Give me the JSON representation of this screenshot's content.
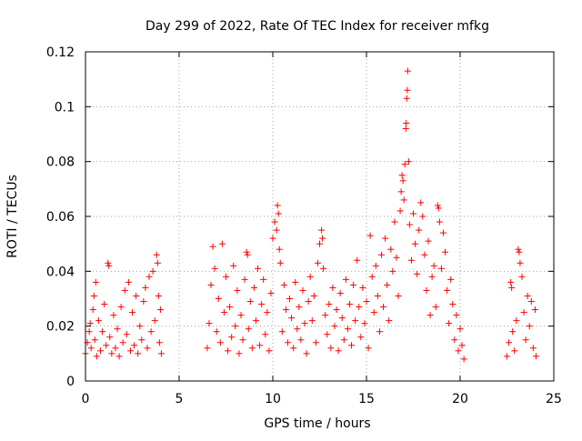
{
  "chart_data": {
    "type": "scatter",
    "title": "Day 299 of 2022, Rate Of TEC Index for receiver mfkg",
    "xlabel": "GPS time / hours",
    "ylabel": "ROTI / TECUs",
    "xlim": [
      0,
      25
    ],
    "ylim": [
      0,
      0.12
    ],
    "x_ticks": [
      0,
      5,
      10,
      15,
      20,
      25
    ],
    "x_tick_labels": [
      "0",
      "5",
      "10",
      "15",
      "20",
      "25"
    ],
    "y_ticks": [
      0,
      0.02,
      0.04,
      0.06,
      0.08,
      0.1,
      0.12
    ],
    "y_tick_labels": [
      "0",
      "0.02",
      "0.04",
      "0.06",
      "0.08",
      "0.1",
      "0.12"
    ],
    "grid": true,
    "marker": "+",
    "color": "#ff0000",
    "series": [
      {
        "values": [
          [
            0.0,
            0.01
          ],
          [
            0.1,
            0.014
          ],
          [
            0.2,
            0.018
          ],
          [
            0.25,
            0.021
          ],
          [
            0.3,
            0.012
          ],
          [
            0.4,
            0.026
          ],
          [
            0.45,
            0.031
          ],
          [
            0.5,
            0.015
          ],
          [
            0.55,
            0.036
          ],
          [
            0.6,
            0.009
          ],
          [
            0.7,
            0.022
          ],
          [
            0.8,
            0.011
          ],
          [
            0.9,
            0.018
          ],
          [
            1.0,
            0.028
          ],
          [
            1.1,
            0.013
          ],
          [
            1.2,
            0.043
          ],
          [
            1.25,
            0.042
          ],
          [
            1.3,
            0.016
          ],
          [
            1.4,
            0.01
          ],
          [
            1.5,
            0.024
          ],
          [
            1.6,
            0.012
          ],
          [
            1.7,
            0.019
          ],
          [
            1.8,
            0.009
          ],
          [
            1.9,
            0.027
          ],
          [
            2.0,
            0.014
          ],
          [
            2.1,
            0.033
          ],
          [
            2.2,
            0.017
          ],
          [
            2.3,
            0.036
          ],
          [
            2.4,
            0.011
          ],
          [
            2.5,
            0.025
          ],
          [
            2.6,
            0.013
          ],
          [
            2.7,
            0.031
          ],
          [
            2.8,
            0.01
          ],
          [
            2.9,
            0.02
          ],
          [
            3.0,
            0.015
          ],
          [
            3.1,
            0.029
          ],
          [
            3.2,
            0.034
          ],
          [
            3.3,
            0.012
          ],
          [
            3.4,
            0.038
          ],
          [
            3.5,
            0.018
          ],
          [
            3.6,
            0.04
          ],
          [
            3.7,
            0.022
          ],
          [
            3.8,
            0.046
          ],
          [
            3.85,
            0.043
          ],
          [
            3.9,
            0.031
          ],
          [
            3.95,
            0.014
          ],
          [
            4.0,
            0.026
          ],
          [
            4.05,
            0.01
          ],
          [
            6.5,
            0.012
          ],
          [
            6.6,
            0.021
          ],
          [
            6.7,
            0.035
          ],
          [
            6.8,
            0.049
          ],
          [
            6.9,
            0.041
          ],
          [
            7.0,
            0.018
          ],
          [
            7.1,
            0.03
          ],
          [
            7.2,
            0.014
          ],
          [
            7.3,
            0.05
          ],
          [
            7.4,
            0.025
          ],
          [
            7.5,
            0.038
          ],
          [
            7.6,
            0.011
          ],
          [
            7.7,
            0.027
          ],
          [
            7.8,
            0.016
          ],
          [
            7.9,
            0.042
          ],
          [
            8.0,
            0.02
          ],
          [
            8.1,
            0.033
          ],
          [
            8.2,
            0.01
          ],
          [
            8.3,
            0.024
          ],
          [
            8.4,
            0.015
          ],
          [
            8.5,
            0.037
          ],
          [
            8.6,
            0.047
          ],
          [
            8.65,
            0.046
          ],
          [
            8.7,
            0.019
          ],
          [
            8.8,
            0.029
          ],
          [
            8.9,
            0.012
          ],
          [
            9.0,
            0.034
          ],
          [
            9.1,
            0.022
          ],
          [
            9.2,
            0.041
          ],
          [
            9.3,
            0.013
          ],
          [
            9.4,
            0.028
          ],
          [
            9.5,
            0.037
          ],
          [
            9.6,
            0.017
          ],
          [
            9.7,
            0.025
          ],
          [
            9.8,
            0.011
          ],
          [
            9.9,
            0.032
          ],
          [
            10.0,
            0.052
          ],
          [
            10.1,
            0.058
          ],
          [
            10.2,
            0.055
          ],
          [
            10.25,
            0.064
          ],
          [
            10.3,
            0.061
          ],
          [
            10.35,
            0.048
          ],
          [
            10.4,
            0.043
          ],
          [
            10.5,
            0.018
          ],
          [
            10.6,
            0.035
          ],
          [
            10.7,
            0.026
          ],
          [
            10.8,
            0.014
          ],
          [
            10.9,
            0.03
          ],
          [
            11.0,
            0.023
          ],
          [
            11.1,
            0.012
          ],
          [
            11.2,
            0.036
          ],
          [
            11.3,
            0.019
          ],
          [
            11.4,
            0.027
          ],
          [
            11.5,
            0.015
          ],
          [
            11.6,
            0.033
          ],
          [
            11.7,
            0.021
          ],
          [
            11.8,
            0.01
          ],
          [
            11.9,
            0.029
          ],
          [
            12.0,
            0.038
          ],
          [
            12.1,
            0.022
          ],
          [
            12.2,
            0.031
          ],
          [
            12.3,
            0.014
          ],
          [
            12.4,
            0.043
          ],
          [
            12.5,
            0.05
          ],
          [
            12.6,
            0.055
          ],
          [
            12.65,
            0.052
          ],
          [
            12.7,
            0.041
          ],
          [
            12.8,
            0.024
          ],
          [
            12.9,
            0.017
          ],
          [
            13.0,
            0.028
          ],
          [
            13.1,
            0.012
          ],
          [
            13.2,
            0.034
          ],
          [
            13.3,
            0.02
          ],
          [
            13.4,
            0.026
          ],
          [
            13.5,
            0.011
          ],
          [
            13.6,
            0.032
          ],
          [
            13.7,
            0.023
          ],
          [
            13.8,
            0.015
          ],
          [
            13.9,
            0.037
          ],
          [
            14.0,
            0.019
          ],
          [
            14.1,
            0.028
          ],
          [
            14.2,
            0.013
          ],
          [
            14.3,
            0.035
          ],
          [
            14.4,
            0.022
          ],
          [
            14.5,
            0.044
          ],
          [
            14.6,
            0.027
          ],
          [
            14.7,
            0.016
          ],
          [
            14.8,
            0.034
          ],
          [
            14.9,
            0.021
          ],
          [
            15.0,
            0.029
          ],
          [
            15.1,
            0.012
          ],
          [
            15.2,
            0.053
          ],
          [
            15.3,
            0.038
          ],
          [
            15.4,
            0.025
          ],
          [
            15.5,
            0.042
          ],
          [
            15.6,
            0.031
          ],
          [
            15.7,
            0.018
          ],
          [
            15.8,
            0.046
          ],
          [
            15.9,
            0.027
          ],
          [
            16.0,
            0.052
          ],
          [
            16.1,
            0.035
          ],
          [
            16.2,
            0.022
          ],
          [
            16.3,
            0.048
          ],
          [
            16.4,
            0.04
          ],
          [
            16.5,
            0.058
          ],
          [
            16.6,
            0.045
          ],
          [
            16.7,
            0.031
          ],
          [
            16.8,
            0.062
          ],
          [
            16.85,
            0.069
          ],
          [
            16.9,
            0.075
          ],
          [
            16.95,
            0.073
          ],
          [
            17.0,
            0.066
          ],
          [
            17.05,
            0.079
          ],
          [
            17.1,
            0.092
          ],
          [
            17.12,
            0.094
          ],
          [
            17.15,
            0.103
          ],
          [
            17.18,
            0.106
          ],
          [
            17.2,
            0.113
          ],
          [
            17.25,
            0.08
          ],
          [
            17.3,
            0.057
          ],
          [
            17.4,
            0.044
          ],
          [
            17.5,
            0.061
          ],
          [
            17.6,
            0.05
          ],
          [
            17.7,
            0.039
          ],
          [
            17.8,
            0.055
          ],
          [
            17.9,
            0.065
          ],
          [
            18.0,
            0.06
          ],
          [
            18.1,
            0.046
          ],
          [
            18.2,
            0.033
          ],
          [
            18.3,
            0.051
          ],
          [
            18.4,
            0.024
          ],
          [
            18.5,
            0.038
          ],
          [
            18.6,
            0.042
          ],
          [
            18.7,
            0.027
          ],
          [
            18.8,
            0.064
          ],
          [
            18.85,
            0.063
          ],
          [
            18.9,
            0.058
          ],
          [
            19.0,
            0.041
          ],
          [
            19.1,
            0.054
          ],
          [
            19.2,
            0.047
          ],
          [
            19.3,
            0.033
          ],
          [
            19.4,
            0.021
          ],
          [
            19.5,
            0.037
          ],
          [
            19.6,
            0.028
          ],
          [
            19.7,
            0.015
          ],
          [
            19.8,
            0.024
          ],
          [
            19.9,
            0.011
          ],
          [
            20.0,
            0.019
          ],
          [
            20.1,
            0.013
          ],
          [
            20.2,
            0.008
          ],
          [
            22.5,
            0.009
          ],
          [
            22.6,
            0.014
          ],
          [
            22.7,
            0.036
          ],
          [
            22.75,
            0.034
          ],
          [
            22.8,
            0.018
          ],
          [
            22.9,
            0.011
          ],
          [
            23.0,
            0.022
          ],
          [
            23.1,
            0.048
          ],
          [
            23.15,
            0.047
          ],
          [
            23.2,
            0.043
          ],
          [
            23.3,
            0.038
          ],
          [
            23.4,
            0.025
          ],
          [
            23.5,
            0.015
          ],
          [
            23.6,
            0.031
          ],
          [
            23.7,
            0.02
          ],
          [
            23.8,
            0.029
          ],
          [
            23.9,
            0.012
          ],
          [
            24.0,
            0.026
          ],
          [
            24.05,
            0.009
          ]
        ]
      }
    ]
  }
}
